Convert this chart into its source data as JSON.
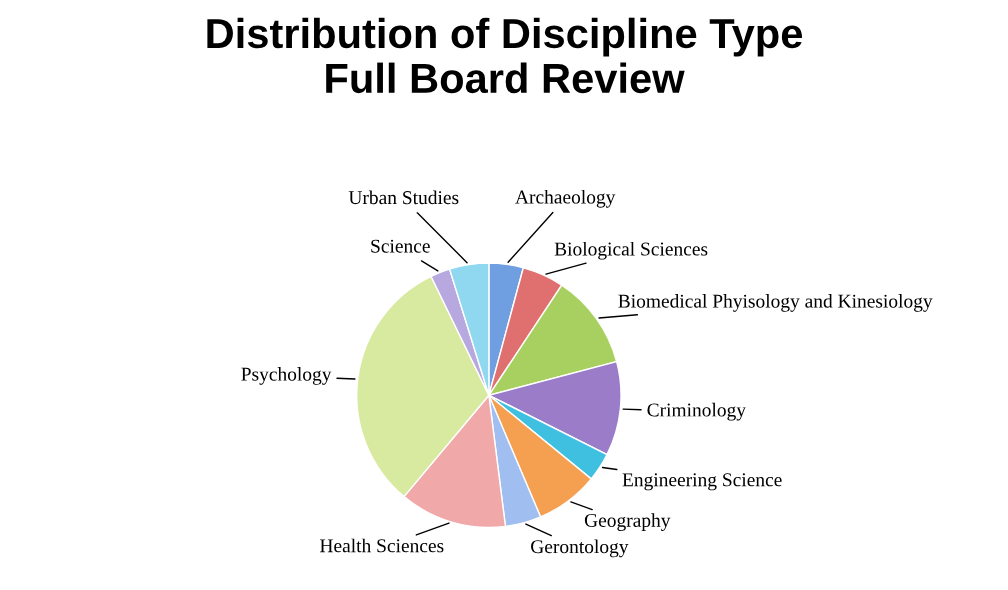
{
  "chart_data": {
    "type": "pie",
    "title": "Distribution of Discipline Type\nFull Board Review",
    "categories": [
      "Archaeology",
      "Biological Sciences",
      "Biomedical Phyisology and Kinesiology",
      "Criminology",
      "Engineering Science",
      "Geography",
      "Gerontology",
      "Health Sciences",
      "Psychology",
      "Science",
      "Urban Studies"
    ],
    "values": [
      4.2,
      5.1,
      11.6,
      11.5,
      3.5,
      7.7,
      4.4,
      13.1,
      31.7,
      2.4,
      4.8
    ],
    "colors": [
      "#6f9fe0",
      "#e07070",
      "#a8d060",
      "#9a7cc8",
      "#40c0e0",
      "#f5a050",
      "#a0bff0",
      "#f0a8a8",
      "#d8eaa0",
      "#b8a8e0",
      "#90d8f0"
    ],
    "legend": false
  }
}
